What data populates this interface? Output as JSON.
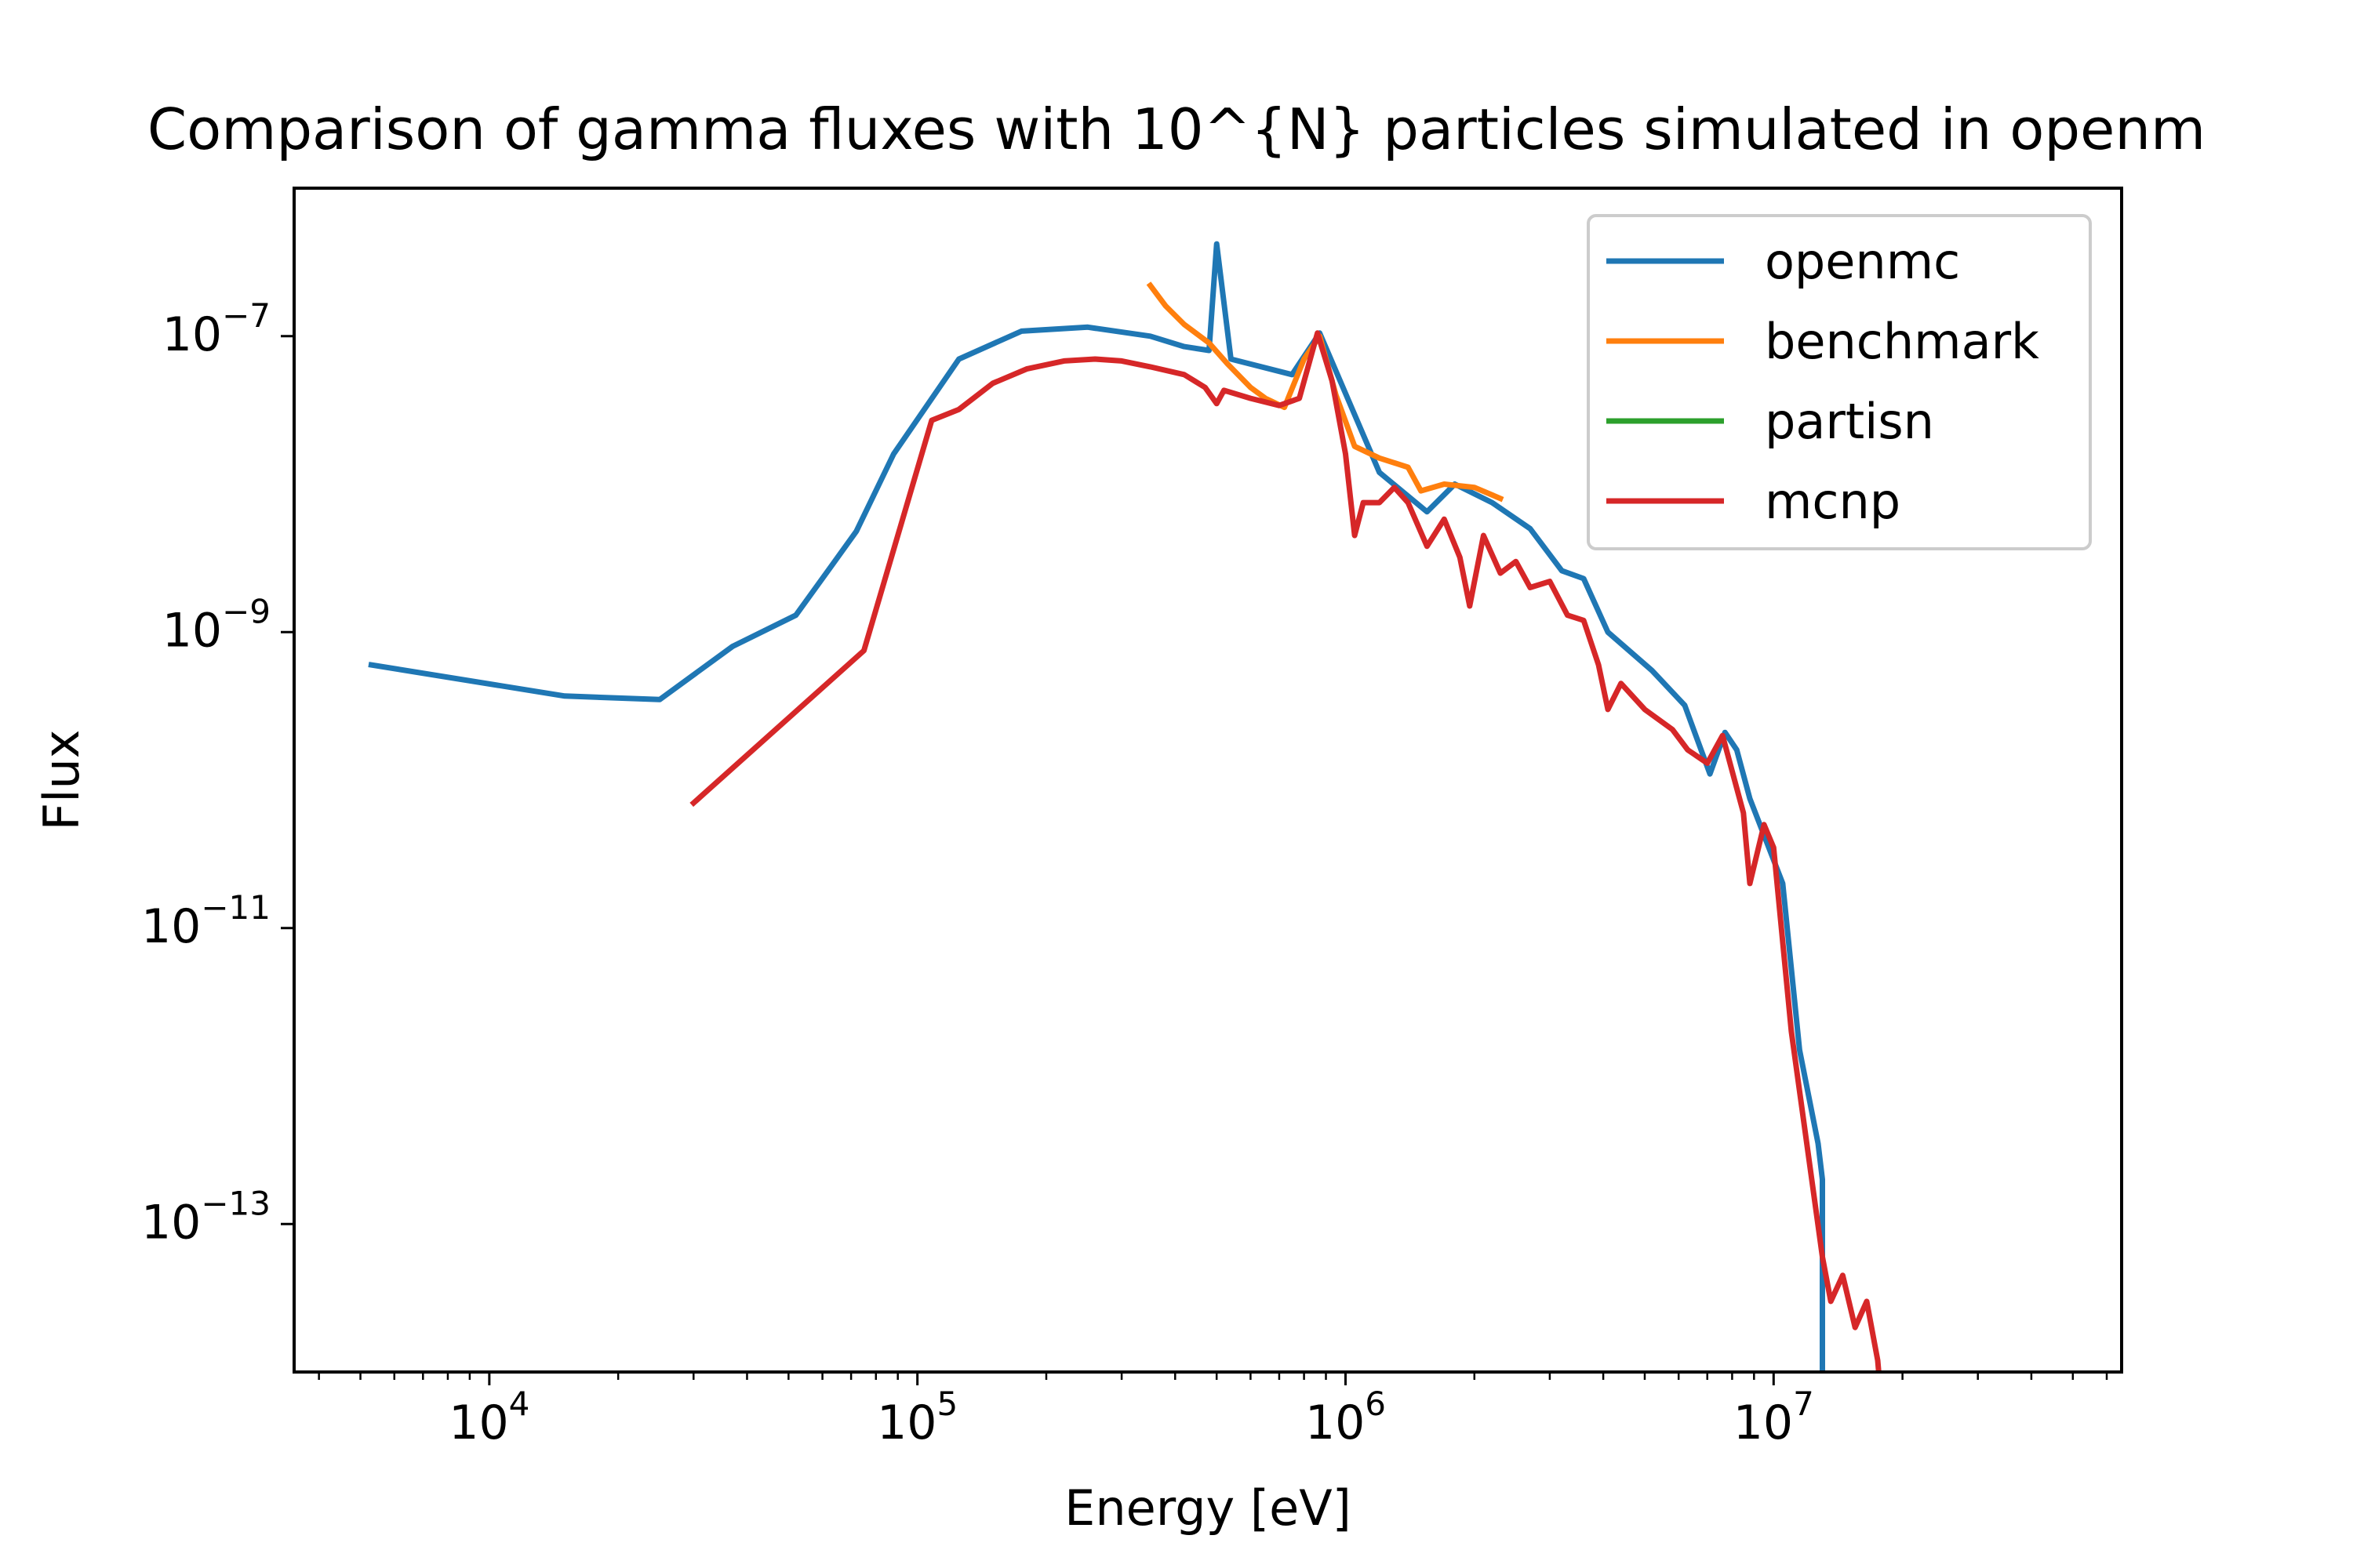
{
  "chart_data": {
    "type": "line",
    "title": "Comparison of gamma fluxes with 10^{N} particles simulated in openm",
    "xlabel": "Energy [eV]",
    "ylabel": "Flux",
    "xscale": "log",
    "yscale": "log",
    "xlim": [
      3500,
      65000000
    ],
    "ylim": [
      1e-14,
      1e-06
    ],
    "grid": false,
    "legend_position": "top-right",
    "x_ticks": [
      {
        "value": 10000,
        "base": "10",
        "exp": "4"
      },
      {
        "value": 100000,
        "base": "10",
        "exp": "5"
      },
      {
        "value": 1000000,
        "base": "10",
        "exp": "6"
      },
      {
        "value": 10000000,
        "base": "10",
        "exp": "7"
      }
    ],
    "y_ticks": [
      {
        "value": 1e-07,
        "base": "10",
        "exp": "−7"
      },
      {
        "value": 1e-09,
        "base": "10",
        "exp": "−9"
      },
      {
        "value": 1e-11,
        "base": "10",
        "exp": "−11"
      },
      {
        "value": 1e-13,
        "base": "10",
        "exp": "−13"
      }
    ],
    "series": [
      {
        "name": "openmc",
        "color": "#1f77b4",
        "points": [
          [
            5300,
            6e-10
          ],
          [
            15000,
            3.7e-10
          ],
          [
            25000,
            3.5e-10
          ],
          [
            37000,
            8e-10
          ],
          [
            52000,
            1.3e-09
          ],
          [
            63000,
            2.8e-09
          ],
          [
            72000,
            4.8e-09
          ],
          [
            88000,
            1.6e-08
          ],
          [
            125000,
            7e-08
          ],
          [
            175000,
            1.08e-07
          ],
          [
            250000,
            1.15e-07
          ],
          [
            350000,
            1e-07
          ],
          [
            420000,
            8.5e-08
          ],
          [
            480000,
            8e-08
          ],
          [
            500000,
            4.2e-07
          ],
          [
            540000,
            7e-08
          ],
          [
            750000,
            5.5e-08
          ],
          [
            870000,
            1.05e-07
          ],
          [
            1200000,
            1.2e-08
          ],
          [
            1550000,
            6.5e-09
          ],
          [
            1800000,
            1e-08
          ],
          [
            2200000,
            7.5e-09
          ],
          [
            2700000,
            5e-09
          ],
          [
            3200000,
            2.6e-09
          ],
          [
            3600000,
            2.3e-09
          ],
          [
            4100000,
            1e-09
          ],
          [
            5200000,
            5.5e-10
          ],
          [
            6200000,
            3.2e-10
          ],
          [
            7100000,
            1.1e-10
          ],
          [
            7700000,
            2.1e-10
          ],
          [
            8200000,
            1.6e-10
          ],
          [
            8800000,
            7.5e-11
          ],
          [
            10500000,
            2e-11
          ],
          [
            11500000,
            1.5e-12
          ],
          [
            12700000,
            3.5e-13
          ],
          [
            13000000,
            2e-13
          ],
          [
            13000000,
            1e-14
          ]
        ]
      },
      {
        "name": "benchmark",
        "color": "#ff7f0e",
        "points": [
          [
            350000,
            2.2e-07
          ],
          [
            380000,
            1.6e-07
          ],
          [
            420000,
            1.2e-07
          ],
          [
            480000,
            9e-08
          ],
          [
            530000,
            6.5e-08
          ],
          [
            600000,
            4.5e-08
          ],
          [
            650000,
            3.8e-08
          ],
          [
            720000,
            3.3e-08
          ],
          [
            800000,
            7e-08
          ],
          [
            870000,
            1e-07
          ],
          [
            950000,
            4e-08
          ],
          [
            1050000,
            1.8e-08
          ],
          [
            1200000,
            1.5e-08
          ],
          [
            1400000,
            1.3e-08
          ],
          [
            1500000,
            9e-09
          ],
          [
            1700000,
            1e-08
          ],
          [
            2000000,
            9.5e-09
          ],
          [
            2300000,
            8e-09
          ]
        ]
      },
      {
        "name": "partisn",
        "color": "#2ca02c",
        "points": []
      },
      {
        "name": "mcnp",
        "color": "#d62728",
        "points": [
          [
            30000,
            7e-11
          ],
          [
            75000,
            7.5e-10
          ],
          [
            108000,
            2.7e-08
          ],
          [
            125000,
            3.2e-08
          ],
          [
            150000,
            4.8e-08
          ],
          [
            180000,
            6e-08
          ],
          [
            220000,
            6.8e-08
          ],
          [
            260000,
            7e-08
          ],
          [
            300000,
            6.8e-08
          ],
          [
            350000,
            6.2e-08
          ],
          [
            420000,
            5.5e-08
          ],
          [
            470000,
            4.5e-08
          ],
          [
            500000,
            3.5e-08
          ],
          [
            520000,
            4.3e-08
          ],
          [
            600000,
            3.8e-08
          ],
          [
            700000,
            3.4e-08
          ],
          [
            780000,
            3.8e-08
          ],
          [
            860000,
            1.05e-07
          ],
          [
            930000,
            5e-08
          ],
          [
            1000000,
            1.6e-08
          ],
          [
            1050000,
            4.5e-09
          ],
          [
            1100000,
            7.5e-09
          ],
          [
            1200000,
            7.5e-09
          ],
          [
            1300000,
            9.5e-09
          ],
          [
            1400000,
            7.5e-09
          ],
          [
            1550000,
            3.8e-09
          ],
          [
            1700000,
            5.8e-09
          ],
          [
            1850000,
            3.2e-09
          ],
          [
            1950000,
            1.5e-09
          ],
          [
            2100000,
            4.5e-09
          ],
          [
            2300000,
            2.5e-09
          ],
          [
            2500000,
            3e-09
          ],
          [
            2700000,
            2e-09
          ],
          [
            3000000,
            2.2e-09
          ],
          [
            3300000,
            1.3e-09
          ],
          [
            3600000,
            1.2e-09
          ],
          [
            3900000,
            6e-10
          ],
          [
            4100000,
            3e-10
          ],
          [
            4400000,
            4.5e-10
          ],
          [
            5000000,
            3e-10
          ],
          [
            5800000,
            2.2e-10
          ],
          [
            6300000,
            1.6e-10
          ],
          [
            7000000,
            1.3e-10
          ],
          [
            7600000,
            2e-10
          ],
          [
            8500000,
            6e-11
          ],
          [
            8800000,
            2e-11
          ],
          [
            9500000,
            5e-11
          ],
          [
            10000000,
            3.5e-11
          ],
          [
            11000000,
            2e-12
          ],
          [
            13000000,
            6e-14
          ],
          [
            13600000,
            3e-14
          ],
          [
            14500000,
            4.5e-14
          ],
          [
            15500000,
            2e-14
          ],
          [
            16500000,
            3e-14
          ],
          [
            17500000,
            1.2e-14
          ],
          [
            17600000,
            1e-14
          ]
        ]
      }
    ]
  }
}
